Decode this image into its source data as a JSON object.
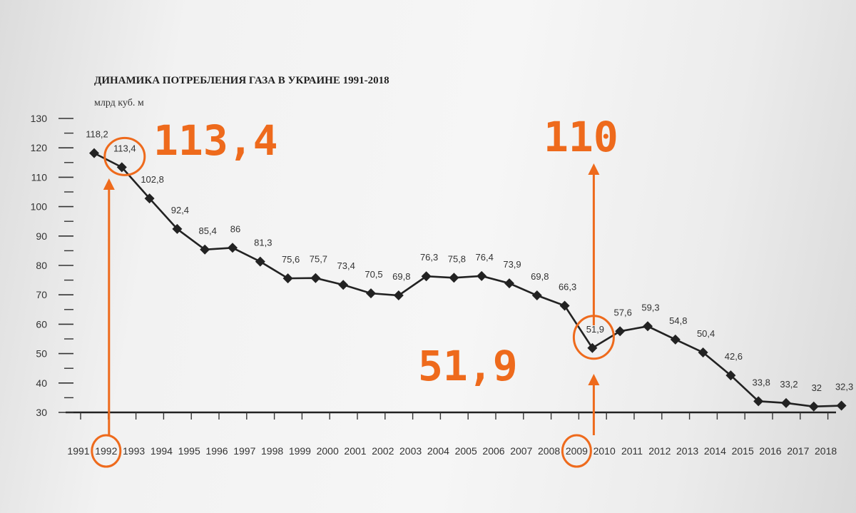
{
  "chart_data": {
    "type": "line",
    "title": "ДИНАМИКА ПОТРЕБЛЕНИЯ ГАЗА В УКРАИНЕ 1991-2018",
    "unit_label": "млрд куб. м",
    "x": [
      "1991",
      "1992",
      "1993",
      "1994",
      "1995",
      "1996",
      "1997",
      "1998",
      "1999",
      "2000",
      "2001",
      "2002",
      "2003",
      "2004",
      "2005",
      "2006",
      "2007",
      "2008",
      "2009",
      "2010",
      "2011",
      "2012",
      "2013",
      "2014",
      "2015",
      "2016",
      "2017",
      "2018"
    ],
    "values": [
      118.2,
      113.4,
      102.8,
      92.4,
      85.4,
      86,
      81.3,
      75.6,
      75.7,
      73.4,
      70.5,
      69.8,
      76.3,
      75.8,
      76.4,
      73.9,
      69.8,
      66.3,
      51.9,
      57.6,
      59.3,
      54.8,
      50.4,
      42.6,
      33.8,
      33.2,
      32,
      32.3
    ],
    "value_labels": [
      "118,2",
      "113,4",
      "102,8",
      "92,4",
      "85,4",
      "86",
      "81,3",
      "75,6",
      "75,7",
      "73,4",
      "70,5",
      "69,8",
      "76,3",
      "75,8",
      "76,4",
      "73,9",
      "69,8",
      "66,3",
      "51,9",
      "57,6",
      "59,3",
      "54,8",
      "50,4",
      "42,6",
      "33,8",
      "33,2",
      "32",
      "32,3"
    ],
    "y_ticks": [
      "130",
      "120",
      "110",
      "100",
      "90",
      "80",
      "70",
      "60",
      "50",
      "40",
      "30"
    ],
    "ylim": [
      30,
      130
    ],
    "grid": false,
    "marker": "diamond",
    "line_color": "#222222"
  },
  "annotations": {
    "color": "#ee6a1c",
    "labels": [
      {
        "text": "113,4",
        "year": "1992"
      },
      {
        "text": "110",
        "year": "2009"
      },
      {
        "text": "51,9",
        "year": "2009"
      }
    ]
  }
}
